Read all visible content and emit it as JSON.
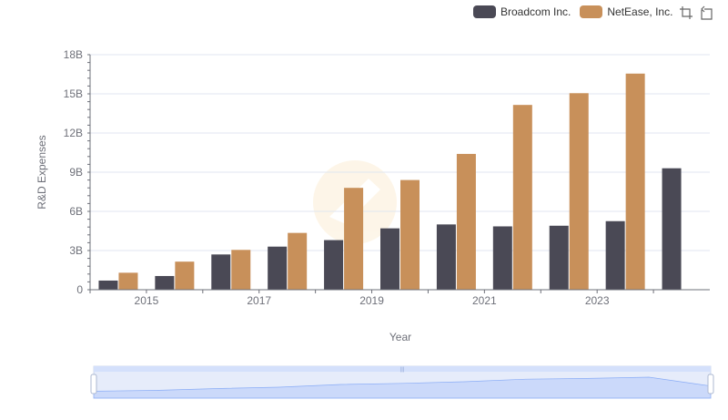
{
  "legend": {
    "items": [
      {
        "label": "Broadcom Inc.",
        "color": "#4a4955"
      },
      {
        "label": "NetEase, Inc.",
        "color": "#c8905a"
      }
    ]
  },
  "toolbox": {
    "icons": [
      "zoom-icon",
      "restore-icon"
    ]
  },
  "chart_data": {
    "type": "bar",
    "xlabel": "Year",
    "ylabel": "R&D Expenses",
    "categories": [
      "2014",
      "2015",
      "2016",
      "2017",
      "2018",
      "2019",
      "2020",
      "2021",
      "2022",
      "2023",
      "2024"
    ],
    "x_tick_labels": [
      "2015",
      "2017",
      "2019",
      "2021",
      "2023"
    ],
    "y_tick_labels": [
      "0",
      "3B",
      "6B",
      "9B",
      "12B",
      "15B",
      "18B"
    ],
    "ylim": [
      0,
      18000000000
    ],
    "grid": true,
    "legend_position": "top-right",
    "series": [
      {
        "name": "Broadcom Inc.",
        "color": "#4a4955",
        "values": [
          700000000,
          1050000000,
          2700000000,
          3300000000,
          3800000000,
          4700000000,
          5000000000,
          4850000000,
          4900000000,
          5250000000,
          9300000000
        ]
      },
      {
        "name": "NetEase, Inc.",
        "color": "#c8905a",
        "values": [
          1300000000,
          2150000000,
          3050000000,
          4350000000,
          7800000000,
          8400000000,
          10400000000,
          14150000000,
          15050000000,
          16550000000,
          null
        ]
      }
    ]
  },
  "datazoom": {
    "start": 0,
    "end": 100
  }
}
